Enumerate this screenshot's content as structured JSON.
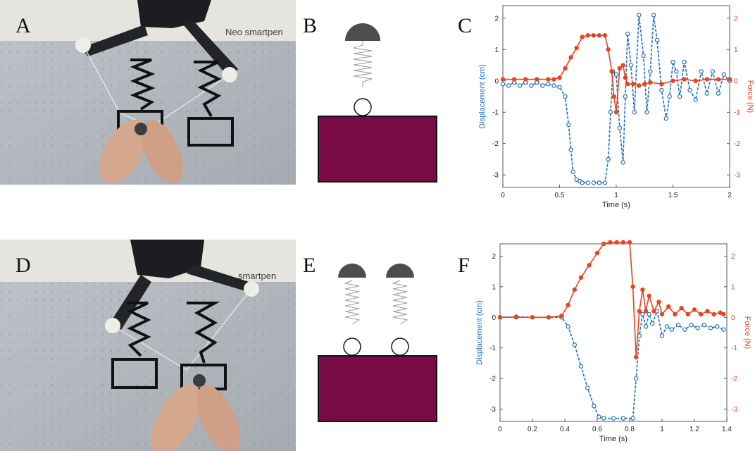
{
  "panels": {
    "A": "A",
    "B": "B",
    "C": "C",
    "D": "D",
    "E": "E",
    "F": "F"
  },
  "photo_A_label": "Neo smartpen",
  "photo_D_label": "smartpen",
  "colors": {
    "disp": "#1f6fbf",
    "force": "#e8441f",
    "mass": "#7a0a45",
    "ball": "#4d4d4d"
  },
  "charts": [
    {
      "id": "C",
      "type": "line",
      "xlabel": "Time (s)",
      "ylabel_left": "Displacement (cm)",
      "ylabel_right": "Force (N)",
      "xlim": [
        0,
        2
      ],
      "ylim": [
        -3.4,
        2.4
      ],
      "xticks": [
        "0",
        "0.5",
        "1",
        "1.5",
        "2"
      ],
      "xtick_vals": [
        0,
        0.5,
        1,
        1.5,
        2
      ],
      "yticks_left": [
        "-3",
        "-2",
        "-1",
        "0",
        "1",
        "2"
      ],
      "ytick_vals": [
        -3,
        -2,
        -1,
        0,
        1,
        2
      ],
      "yticks_right": [
        "-3",
        "-2",
        "-1",
        "0",
        "1",
        "2"
      ],
      "series": [
        {
          "name": "Displacement (cm)",
          "axis": "left",
          "x": [
            0,
            0.05,
            0.1,
            0.15,
            0.2,
            0.25,
            0.3,
            0.35,
            0.4,
            0.45,
            0.5,
            0.55,
            0.58,
            0.6,
            0.62,
            0.65,
            0.68,
            0.7,
            0.75,
            0.8,
            0.85,
            0.9,
            0.93,
            0.95,
            0.97,
            1.0,
            1.03,
            1.06,
            1.08,
            1.1,
            1.13,
            1.16,
            1.2,
            1.24,
            1.27,
            1.3,
            1.33,
            1.36,
            1.4,
            1.44,
            1.47,
            1.5,
            1.53,
            1.56,
            1.6,
            1.65,
            1.7,
            1.75,
            1.8,
            1.85,
            1.9,
            1.95,
            2.0
          ],
          "y": [
            -0.1,
            -0.15,
            -0.05,
            -0.15,
            -0.05,
            -0.15,
            -0.05,
            -0.15,
            -0.1,
            -0.15,
            -0.2,
            -0.5,
            -1.4,
            -2.2,
            -2.9,
            -3.15,
            -3.2,
            -3.25,
            -3.25,
            -3.25,
            -3.25,
            -3.25,
            -2.5,
            -1.0,
            0.3,
            0.2,
            -1.5,
            -2.6,
            -0.5,
            1.5,
            0.5,
            -1.0,
            2.1,
            0.8,
            -1.0,
            0.3,
            2.1,
            1.3,
            -0.3,
            -1.2,
            -0.5,
            0.6,
            0.3,
            -0.5,
            0.6,
            -0.3,
            -0.6,
            0.3,
            -0.4,
            0.3,
            -0.4,
            0.2,
            0.0
          ]
        },
        {
          "name": "Force (N)",
          "axis": "right",
          "x": [
            0,
            0.1,
            0.2,
            0.3,
            0.4,
            0.45,
            0.5,
            0.55,
            0.6,
            0.65,
            0.7,
            0.75,
            0.8,
            0.85,
            0.9,
            0.93,
            0.96,
            0.98,
            1.0,
            1.03,
            1.06,
            1.08,
            1.1,
            1.15,
            1.2,
            1.25,
            1.3,
            1.4,
            1.5,
            1.6,
            1.7,
            1.8,
            1.9,
            2.0
          ],
          "y": [
            0.05,
            0.05,
            0.05,
            0.05,
            0.05,
            0.05,
            0.1,
            0.4,
            0.75,
            1.05,
            1.4,
            1.45,
            1.45,
            1.45,
            1.45,
            1.0,
            0.3,
            -0.5,
            -1.0,
            0.4,
            0.5,
            0.1,
            -0.1,
            -0.1,
            -0.15,
            -0.1,
            -0.05,
            -0.1,
            0.0,
            0.05,
            0.0,
            0.05,
            0.05,
            0.05
          ]
        }
      ]
    },
    {
      "id": "F",
      "type": "line",
      "xlabel": "Time (s)",
      "ylabel_left": "Displacement (cm)",
      "ylabel_right": "Force (N)",
      "xlim": [
        0,
        1.4
      ],
      "ylim": [
        -3.4,
        2.4
      ],
      "xticks": [
        "0",
        "0.2",
        "0.4",
        "0.6",
        "0.8",
        "1",
        "1.2",
        "1.4"
      ],
      "xtick_vals": [
        0,
        0.2,
        0.4,
        0.6,
        0.8,
        1.0,
        1.2,
        1.4
      ],
      "yticks_left": [
        "-3",
        "-2",
        "-1",
        "0",
        "1",
        "2"
      ],
      "ytick_vals": [
        -3,
        -2,
        -1,
        0,
        1,
        2
      ],
      "yticks_right": [
        "-3",
        "-2",
        "-1",
        "0",
        "1",
        "2"
      ],
      "series": [
        {
          "name": "Displacement (cm)",
          "axis": "left",
          "x": [
            0,
            0.1,
            0.2,
            0.3,
            0.38,
            0.42,
            0.46,
            0.5,
            0.54,
            0.58,
            0.61,
            0.64,
            0.7,
            0.76,
            0.82,
            0.84,
            0.86,
            0.88,
            0.9,
            0.92,
            0.94,
            0.97,
            1.0,
            1.03,
            1.06,
            1.1,
            1.14,
            1.18,
            1.22,
            1.26,
            1.3,
            1.34,
            1.38
          ],
          "y": [
            0.0,
            0.02,
            0.0,
            0.0,
            0.0,
            -0.3,
            -0.9,
            -1.6,
            -2.3,
            -2.9,
            -3.25,
            -3.3,
            -3.3,
            -3.3,
            -3.3,
            -2.0,
            -0.6,
            0.1,
            -0.3,
            0.1,
            -0.2,
            0.2,
            -0.6,
            -0.3,
            -0.4,
            -0.25,
            -0.4,
            -0.25,
            -0.35,
            -0.25,
            -0.35,
            -0.3,
            -0.4
          ]
        },
        {
          "name": "Force (N)",
          "axis": "right",
          "x": [
            0,
            0.1,
            0.2,
            0.3,
            0.38,
            0.42,
            0.46,
            0.5,
            0.55,
            0.6,
            0.64,
            0.68,
            0.72,
            0.76,
            0.8,
            0.82,
            0.84,
            0.86,
            0.88,
            0.9,
            0.92,
            0.95,
            0.98,
            1.0,
            1.04,
            1.08,
            1.12,
            1.16,
            1.2,
            1.24,
            1.28,
            1.32,
            1.36,
            1.38
          ],
          "y": [
            0.0,
            0.0,
            0.0,
            0.0,
            0.05,
            0.4,
            0.9,
            1.3,
            1.7,
            2.1,
            2.4,
            2.45,
            2.45,
            2.45,
            2.45,
            1.0,
            -1.3,
            0.2,
            0.9,
            0.2,
            0.7,
            0.2,
            0.5,
            0.1,
            0.35,
            0.1,
            0.3,
            0.1,
            0.25,
            0.1,
            0.2,
            0.1,
            0.15,
            0.1
          ]
        }
      ]
    }
  ]
}
